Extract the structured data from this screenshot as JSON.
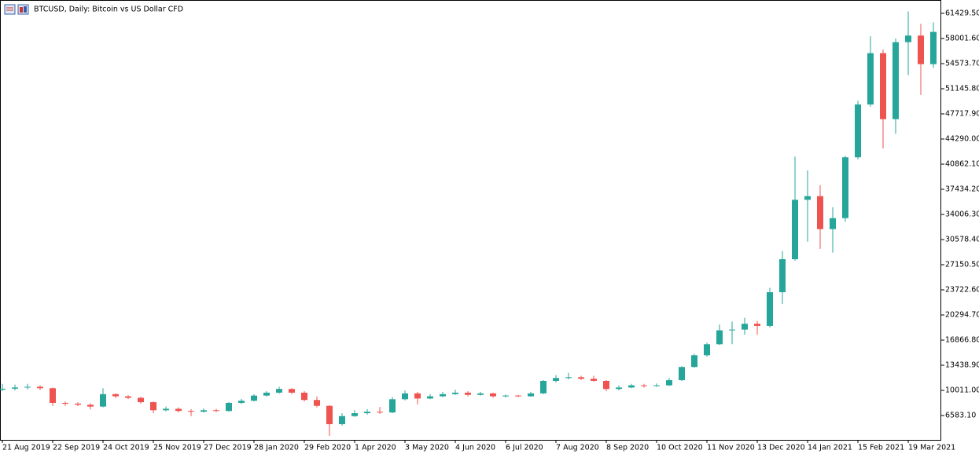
{
  "chart_data": {
    "type": "candlestick",
    "title": "BTCUSD, Daily:  Bitcoin vs US Dollar CFD",
    "up_color": "#26a69a",
    "down_color": "#ef5350",
    "x": [
      0,
      8,
      16,
      24,
      32,
      40,
      48,
      56,
      64,
      72,
      80,
      88,
      96,
      104,
      112,
      120,
      128,
      136,
      144,
      152,
      160,
      168,
      176,
      184,
      192,
      200,
      208,
      216,
      224,
      232,
      240,
      248,
      256,
      264,
      272,
      280,
      288,
      296,
      304,
      312,
      320,
      328,
      336,
      344,
      352,
      360,
      368,
      376,
      384,
      392,
      400,
      408,
      416,
      424,
      432,
      440,
      448,
      456,
      464,
      472,
      480,
      488,
      496,
      504,
      512,
      520,
      528,
      536,
      544,
      552,
      560,
      568,
      576,
      584,
      592
    ],
    "open": [
      10100,
      10240,
      10400,
      10500,
      10300,
      8300,
      8200,
      8050,
      7800,
      9500,
      9200,
      9000,
      8400,
      7300,
      7500,
      7200,
      7100,
      7300,
      7200,
      8300,
      8600,
      9300,
      9700,
      10200,
      9700,
      8700,
      7900,
      5400,
      6500,
      6900,
      7100,
      7000,
      8800,
      9600,
      8900,
      9200,
      9500,
      9700,
      9400,
      9600,
      9200,
      9300,
      9200,
      9600,
      11300,
      11700,
      11800,
      11600,
      11300,
      10200,
      10400,
      10700,
      10600,
      10700,
      11400,
      13200,
      14800,
      16300,
      18200,
      18300,
      19100,
      18800,
      23400,
      27900,
      36000,
      36500,
      32000,
      33500,
      41800,
      49000,
      56000,
      47000,
      57500,
      58400,
      54500
    ],
    "high": [
      10900,
      10800,
      10900,
      10700,
      10400,
      8500,
      8400,
      8250,
      10300,
      9600,
      9350,
      9150,
      8500,
      7800,
      7700,
      7450,
      7550,
      7500,
      8450,
      8850,
      9500,
      9900,
      10500,
      10300,
      9900,
      9200,
      8000,
      6900,
      7300,
      7450,
      7750,
      9100,
      10000,
      9800,
      9500,
      9800,
      10100,
      9900,
      9800,
      9700,
      9450,
      9400,
      9800,
      11400,
      12100,
      12400,
      12000,
      12000,
      11400,
      10700,
      10900,
      10900,
      10950,
      11700,
      13300,
      15000,
      16500,
      19000,
      19400,
      19900,
      19500,
      24000,
      29000,
      41900,
      40000,
      38000,
      35000,
      42000,
      49500,
      58300,
      56500,
      58000,
      61700,
      60000,
      60200
    ],
    "low": [
      9900,
      10000,
      10150,
      10050,
      7900,
      7900,
      7850,
      7400,
      7700,
      8950,
      8800,
      8200,
      6900,
      7150,
      7000,
      6500,
      7000,
      7050,
      7100,
      8150,
      8500,
      9200,
      9550,
      9500,
      8500,
      7700,
      3800,
      5200,
      6400,
      6700,
      6800,
      6900,
      8650,
      8100,
      8800,
      9100,
      9400,
      9200,
      9300,
      9000,
      9050,
      9100,
      9150,
      9500,
      11100,
      11500,
      11400,
      11200,
      9900,
      10000,
      10300,
      10400,
      10500,
      10600,
      11300,
      13100,
      14600,
      16200,
      16300,
      17600,
      17600,
      18600,
      21800,
      27700,
      30300,
      29300,
      28800,
      33000,
      41500,
      48700,
      43000,
      45000,
      53000,
      50300,
      54000
    ],
    "close": [
      10240,
      10400,
      10500,
      10300,
      8300,
      8200,
      8050,
      7800,
      9500,
      9200,
      9000,
      8400,
      7300,
      7500,
      7200,
      7100,
      7300,
      7200,
      8300,
      8600,
      9300,
      9700,
      10200,
      9700,
      8700,
      7900,
      5400,
      6500,
      6900,
      7100,
      7000,
      8800,
      9600,
      8900,
      9200,
      9500,
      9700,
      9400,
      9600,
      9200,
      9300,
      9200,
      9600,
      11300,
      11700,
      11800,
      11600,
      11300,
      10200,
      10400,
      10700,
      10600,
      10700,
      11400,
      13200,
      14800,
      16300,
      18200,
      18300,
      19100,
      18800,
      23400,
      27900,
      36000,
      36500,
      32000,
      33500,
      41800,
      49000,
      56000,
      47000,
      57500,
      58400,
      54500,
      58900
    ],
    "xlim": [
      -1.5,
      597
    ],
    "xticks": [
      {
        "value": 0,
        "label": "21 Aug 2019"
      },
      {
        "value": 32,
        "label": "22 Sep 2019"
      },
      {
        "value": 64,
        "label": "24 Oct 2019"
      },
      {
        "value": 96,
        "label": "25 Nov 2019"
      },
      {
        "value": 128,
        "label": "27 Dec 2019"
      },
      {
        "value": 160,
        "label": "28 Jan 2020"
      },
      {
        "value": 192,
        "label": "29 Feb 2020"
      },
      {
        "value": 224,
        "label": "1 Apr 2020"
      },
      {
        "value": 256,
        "label": "3 May 2020"
      },
      {
        "value": 288,
        "label": "4 Jun 2020"
      },
      {
        "value": 320,
        "label": "6 Jul 2020"
      },
      {
        "value": 352,
        "label": "7 Aug 2020"
      },
      {
        "value": 384,
        "label": "8 Sep 2020"
      },
      {
        "value": 416,
        "label": "10 Oct 2020"
      },
      {
        "value": 448,
        "label": "11 Nov 2020"
      },
      {
        "value": 480,
        "label": "13 Dec 2020"
      },
      {
        "value": 512,
        "label": "14 Jan 2021"
      },
      {
        "value": 544,
        "label": "15 Feb 2021"
      },
      {
        "value": 576,
        "label": "19 Mar 2021"
      }
    ],
    "ylim": [
      3262,
      63251
    ],
    "yticks": [
      {
        "value": 61429.5,
        "label": "61429.50"
      },
      {
        "value": 58001.6,
        "label": "58001.60"
      },
      {
        "value": 54573.7,
        "label": "54573.70"
      },
      {
        "value": 51145.8,
        "label": "51145.80"
      },
      {
        "value": 47717.9,
        "label": "47717.90"
      },
      {
        "value": 44290,
        "label": "44290.00"
      },
      {
        "value": 40862.1,
        "label": "40862.10"
      },
      {
        "value": 37434.2,
        "label": "37434.20"
      },
      {
        "value": 34006.3,
        "label": "34006.30"
      },
      {
        "value": 30578.4,
        "label": "30578.40"
      },
      {
        "value": 27150.5,
        "label": "27150.50"
      },
      {
        "value": 23722.6,
        "label": "23722.60"
      },
      {
        "value": 20294.7,
        "label": "20294.70"
      },
      {
        "value": 16866.8,
        "label": "16866.80"
      },
      {
        "value": 13438.9,
        "label": "13438.90"
      },
      {
        "value": 10011,
        "label": "10011.00"
      },
      {
        "value": 6583.1,
        "label": "6583.10"
      }
    ]
  }
}
